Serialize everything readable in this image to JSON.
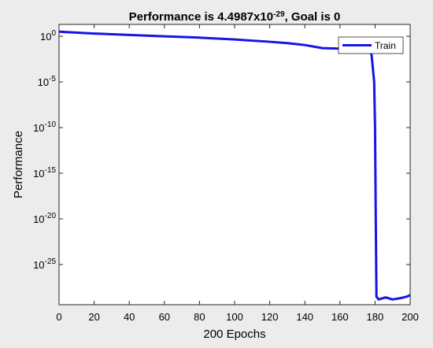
{
  "chart_data": {
    "type": "line",
    "title": {
      "prefix": "Performance is 4.4987x10",
      "exponent": "-29",
      "suffix": ", Goal is 0"
    },
    "xlabel": "200 Epochs",
    "ylabel": "Performance",
    "xlim": [
      0,
      200
    ],
    "ylim_log10": [
      -29.4,
      1.3
    ],
    "y_scale": "log",
    "x_ticks": [
      0,
      20,
      40,
      60,
      80,
      100,
      120,
      140,
      160,
      180,
      200
    ],
    "y_ticks": [
      {
        "base": "10",
        "exp": "0",
        "value": 1
      },
      {
        "base": "10",
        "exp": "-5",
        "value": 1e-05
      },
      {
        "base": "10",
        "exp": "-10",
        "value": 1e-10
      },
      {
        "base": "10",
        "exp": "-15",
        "value": 1e-15
      },
      {
        "base": "10",
        "exp": "-20",
        "value": 1e-20
      },
      {
        "base": "10",
        "exp": "-25",
        "value": 1e-25
      }
    ],
    "grid": false,
    "legend": {
      "position": "top-right",
      "entries": [
        "Train"
      ]
    },
    "series": [
      {
        "name": "Train",
        "color": "#1515e6",
        "points": [
          [
            0,
            3.16
          ],
          [
            20,
            2.0
          ],
          [
            40,
            1.41
          ],
          [
            60,
            1.0
          ],
          [
            80,
            0.71
          ],
          [
            100,
            0.45
          ],
          [
            120,
            0.25
          ],
          [
            130,
            0.18
          ],
          [
            140,
            0.11
          ],
          [
            150,
            0.05
          ],
          [
            160,
            0.045
          ],
          [
            170,
            0.045
          ],
          [
            176,
            0.04
          ],
          [
            178,
            0.01
          ],
          [
            179.5,
            1e-05
          ],
          [
            180,
            1e-10
          ],
          [
            180.4,
            1e-20
          ],
          [
            180.8,
            3e-29
          ],
          [
            182,
            1.5e-29
          ],
          [
            186,
            2.5e-29
          ],
          [
            190,
            1.5e-29
          ],
          [
            194,
            2e-29
          ],
          [
            198,
            3e-29
          ],
          [
            200,
            4.4987e-29
          ]
        ]
      }
    ]
  }
}
